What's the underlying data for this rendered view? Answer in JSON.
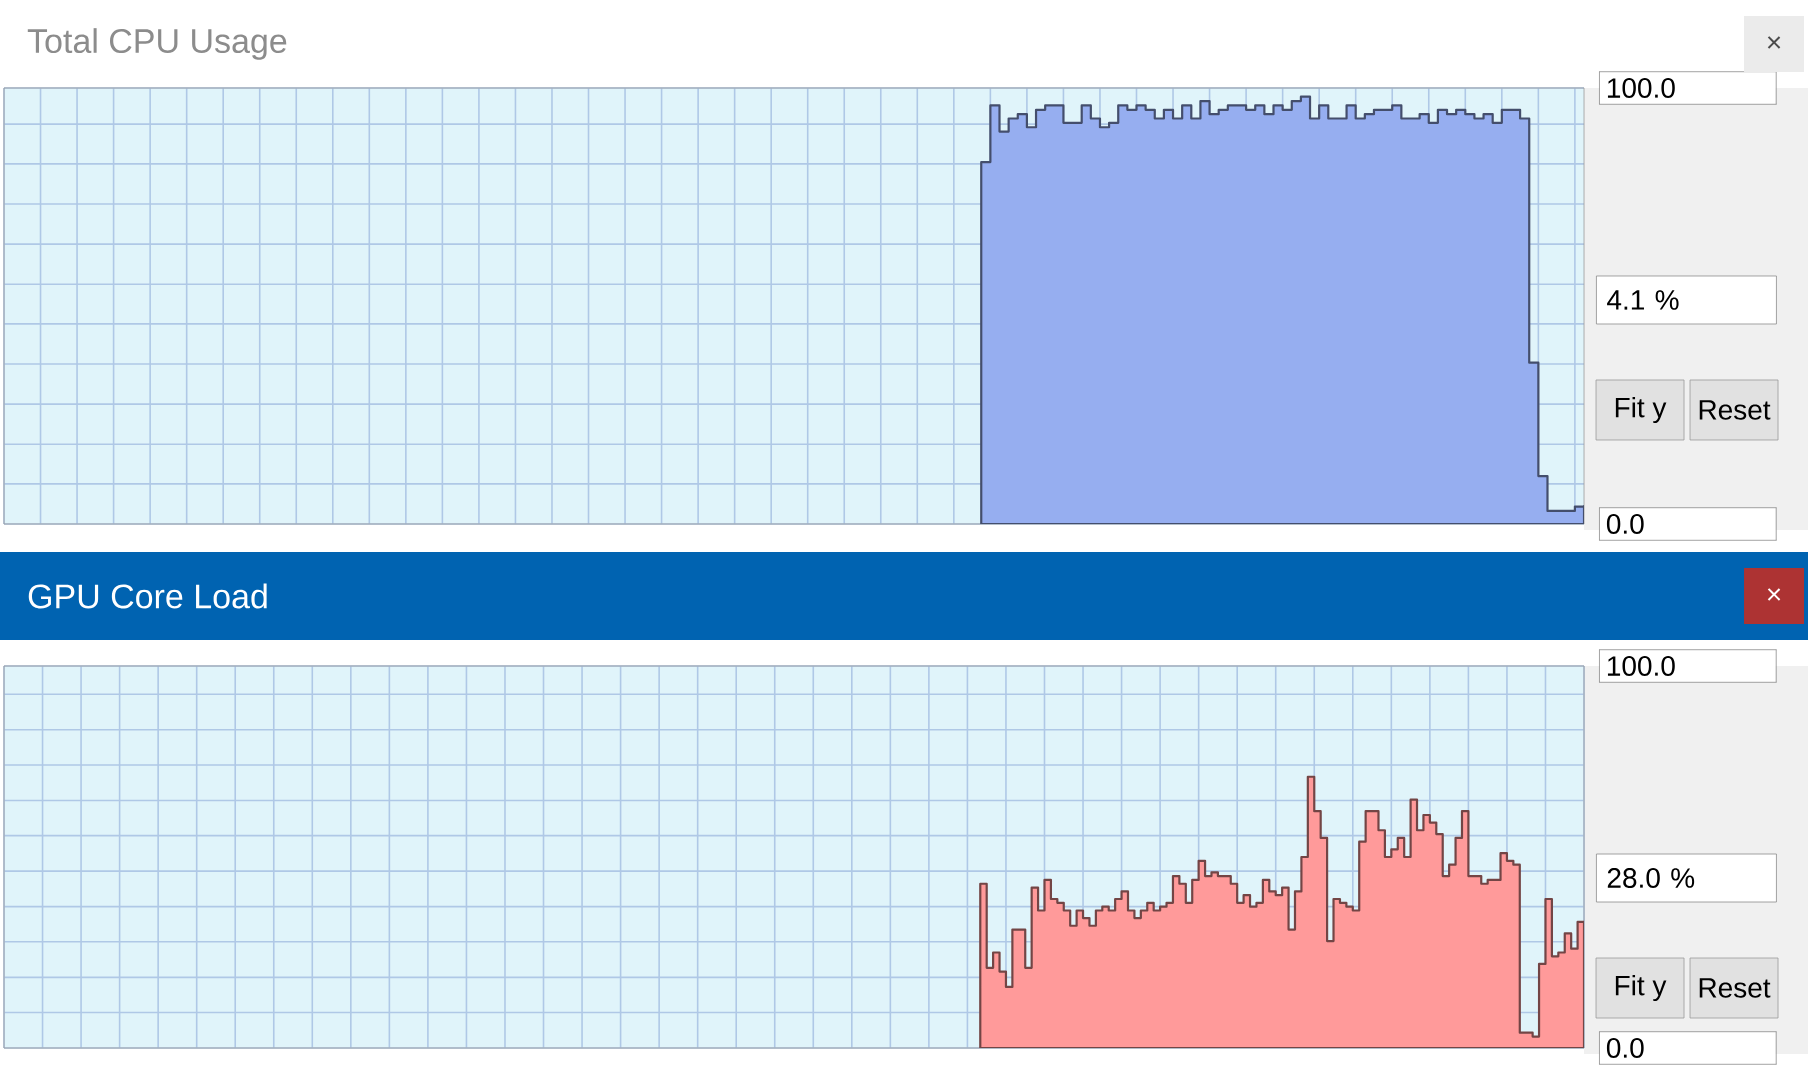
{
  "chart_data": [
    {
      "type": "area",
      "title": "Total CPU Usage",
      "color": "#96aef0",
      "grid": true,
      "tick_labels": "y",
      "ylim": [
        0,
        100
      ],
      "yticks": [
        {
          "value": 0,
          "label": "0.0"
        },
        {
          "value": 9.2,
          "label": null
        },
        {
          "value": 18.3,
          "label": null
        },
        {
          "value": 27.5,
          "label": null
        },
        {
          "value": 36.7,
          "label": null
        },
        {
          "value": 45.9,
          "label": null
        },
        {
          "value": 55,
          "label": null
        },
        {
          "value": 64.2,
          "label": null
        },
        {
          "value": 73.4,
          "label": null
        },
        {
          "value": 82.6,
          "label": null
        },
        {
          "value": 91.7,
          "label": null
        },
        {
          "value": 100,
          "label": "100.0"
        }
      ],
      "annotations": [
        "4.1 %",
        "Fit y",
        "Reset",
        "×"
      ],
      "categories": [
        null,
        null,
        null,
        null,
        null,
        null,
        null,
        null,
        null,
        null,
        null,
        null,
        null,
        null,
        null,
        null,
        null,
        null,
        null,
        null,
        null,
        null,
        null,
        null,
        null,
        null,
        null,
        null,
        null,
        null,
        null,
        null,
        null,
        null,
        null,
        null,
        null,
        null,
        null,
        null,
        null,
        null,
        null,
        null,
        null,
        null,
        null,
        null,
        null,
        null,
        null,
        null,
        null,
        null,
        null,
        null,
        null,
        null,
        null,
        null,
        null,
        null,
        null,
        null,
        null,
        null,
        null,
        null,
        null,
        null,
        null,
        null,
        null,
        null,
        null,
        null,
        null,
        null,
        null,
        null,
        null,
        null,
        null,
        null,
        null,
        null,
        null,
        null,
        null,
        null,
        null,
        null,
        null,
        null,
        null,
        null,
        null,
        null,
        null,
        null,
        null,
        null,
        null,
        null,
        null,
        null,
        null,
        null,
        null,
        null,
        null,
        null,
        null,
        null,
        null,
        null,
        null,
        null,
        null,
        null,
        null,
        null,
        null,
        null,
        null,
        null,
        null,
        null,
        null,
        null,
        null,
        null,
        null,
        null,
        null,
        null,
        null,
        null,
        null,
        null,
        null,
        null,
        null,
        null,
        null,
        null,
        null,
        null,
        null,
        null,
        null,
        null,
        null,
        null,
        null,
        null,
        null,
        null,
        null,
        null,
        null,
        null,
        null,
        null,
        null,
        null,
        null,
        null,
        null,
        null,
        null,
        null,
        null,
        null
      ],
      "values": [
        null,
        null,
        null,
        null,
        null,
        null,
        null,
        null,
        null,
        null,
        null,
        null,
        null,
        null,
        null,
        null,
        null,
        null,
        null,
        null,
        null,
        null,
        null,
        null,
        null,
        null,
        null,
        null,
        null,
        null,
        null,
        null,
        null,
        null,
        null,
        null,
        null,
        null,
        null,
        null,
        null,
        null,
        null,
        null,
        null,
        null,
        null,
        null,
        null,
        null,
        null,
        null,
        null,
        null,
        null,
        null,
        null,
        null,
        null,
        null,
        null,
        null,
        null,
        null,
        null,
        null,
        null,
        null,
        null,
        null,
        null,
        null,
        null,
        null,
        null,
        null,
        null,
        null,
        null,
        null,
        null,
        null,
        null,
        null,
        null,
        null,
        null,
        null,
        null,
        null,
        null,
        null,
        null,
        null,
        null,
        null,
        null,
        null,
        null,
        null,
        null,
        null,
        null,
        null,
        null,
        null,
        null,
        83,
        96,
        90,
        93,
        94,
        91,
        95,
        96,
        96,
        92,
        92,
        96,
        93,
        91,
        92,
        96,
        95,
        96,
        95,
        93,
        95,
        93,
        96,
        93,
        97,
        94,
        95,
        96,
        96,
        95,
        96,
        94,
        96,
        95,
        97,
        98,
        93,
        96,
        93,
        93,
        96,
        93,
        94,
        95,
        95,
        96,
        93,
        93,
        94,
        92,
        95,
        94,
        95,
        94,
        93,
        94,
        92,
        95,
        95,
        93,
        37,
        11,
        3,
        3,
        3,
        4,
        4.1
      ]
    },
    {
      "type": "area",
      "title": "GPU Core Load",
      "color": "#ff9a9a",
      "grid": true,
      "tick_labels": "y",
      "ylim": [
        0,
        100
      ],
      "yticks": [
        {
          "value": 0,
          "label": "0.0"
        },
        {
          "value": 9.3,
          "label": null
        },
        {
          "value": 18.5,
          "label": null
        },
        {
          "value": 27.8,
          "label": null
        },
        {
          "value": 37,
          "label": null
        },
        {
          "value": 46.3,
          "label": null
        },
        {
          "value": 55.6,
          "label": null
        },
        {
          "value": 64.8,
          "label": null
        },
        {
          "value": 74.1,
          "label": null
        },
        {
          "value": 83.3,
          "label": null
        },
        {
          "value": 92.6,
          "label": null
        },
        {
          "value": 100,
          "label": "100.0"
        }
      ],
      "annotations": [
        "28.0 %",
        "Fit y",
        "Reset",
        "×"
      ],
      "categories": [
        null,
        null,
        null,
        null,
        null,
        null,
        null,
        null,
        null,
        null,
        null,
        null,
        null,
        null,
        null,
        null,
        null,
        null,
        null,
        null,
        null,
        null,
        null,
        null,
        null,
        null,
        null,
        null,
        null,
        null,
        null,
        null,
        null,
        null,
        null,
        null,
        null,
        null,
        null,
        null,
        null,
        null,
        null,
        null,
        null,
        null,
        null,
        null,
        null,
        null,
        null,
        null,
        null,
        null,
        null,
        null,
        null,
        null,
        null,
        null,
        null,
        null,
        null,
        null,
        null,
        null,
        null,
        null,
        null,
        null,
        null,
        null,
        null,
        null,
        null,
        null,
        null,
        null,
        null,
        null,
        null,
        null,
        null,
        null,
        null,
        null,
        null,
        null,
        null,
        null,
        null,
        null,
        null,
        null,
        null,
        null,
        null,
        null,
        null,
        null,
        null,
        null,
        null,
        null,
        null,
        null,
        null,
        null,
        null,
        null,
        null,
        null,
        null,
        null,
        null,
        null,
        null,
        null,
        null,
        null,
        null,
        null,
        null,
        null,
        null,
        null,
        null,
        null,
        null,
        null,
        null,
        null,
        null,
        null,
        null,
        null,
        null,
        null,
        null,
        null,
        null,
        null,
        null,
        null,
        null,
        null,
        null,
        null,
        null,
        null,
        null,
        null,
        null,
        null,
        null,
        null,
        null,
        null,
        null,
        null,
        null,
        null,
        null,
        null,
        null,
        null,
        null,
        null,
        null,
        null,
        null,
        null,
        null,
        null,
        null,
        null,
        null,
        null,
        null,
        null,
        null,
        null,
        null,
        null,
        null,
        null,
        null,
        null,
        null,
        null,
        null,
        null,
        null,
        null,
        null,
        null,
        null,
        null,
        null,
        null,
        null,
        null,
        null,
        null,
        null,
        null,
        null,
        null,
        null,
        null,
        null,
        null,
        null,
        null,
        null,
        null,
        null,
        null,
        null,
        null,
        null,
        null,
        null,
        null,
        null,
        null,
        null,
        null,
        null,
        null,
        null,
        null,
        null,
        null,
        null,
        null,
        null,
        null,
        null,
        null,
        null,
        null,
        null,
        null,
        null,
        null,
        null
      ],
      "values": [
        null,
        null,
        null,
        null,
        null,
        null,
        null,
        null,
        null,
        null,
        null,
        null,
        null,
        null,
        null,
        null,
        null,
        null,
        null,
        null,
        null,
        null,
        null,
        null,
        null,
        null,
        null,
        null,
        null,
        null,
        null,
        null,
        null,
        null,
        null,
        null,
        null,
        null,
        null,
        null,
        null,
        null,
        null,
        null,
        null,
        null,
        null,
        null,
        null,
        null,
        null,
        null,
        null,
        null,
        null,
        null,
        null,
        null,
        null,
        null,
        null,
        null,
        null,
        null,
        null,
        null,
        null,
        null,
        null,
        null,
        null,
        null,
        null,
        null,
        null,
        null,
        null,
        null,
        null,
        null,
        null,
        null,
        null,
        null,
        null,
        null,
        null,
        null,
        null,
        null,
        null,
        null,
        null,
        null,
        null,
        null,
        null,
        null,
        null,
        null,
        null,
        null,
        null,
        null,
        null,
        null,
        null,
        null,
        null,
        null,
        null,
        null,
        null,
        null,
        null,
        null,
        null,
        null,
        null,
        null,
        null,
        null,
        null,
        null,
        null,
        null,
        null,
        null,
        null,
        null,
        null,
        null,
        null,
        null,
        null,
        null,
        null,
        null,
        null,
        null,
        null,
        null,
        null,
        null,
        null,
        null,
        null,
        null,
        null,
        null,
        null,
        null,
        43,
        21,
        25,
        20,
        16,
        31,
        31,
        21,
        42,
        36,
        44,
        39,
        38,
        36,
        32,
        36,
        34,
        32,
        36,
        37,
        36,
        39,
        41,
        36,
        34,
        36,
        38,
        36,
        37,
        38,
        45,
        43,
        38,
        44,
        49,
        45,
        46,
        45,
        45,
        43,
        38,
        40,
        37,
        38,
        44,
        41,
        40,
        42,
        31,
        41,
        50,
        71,
        62,
        55,
        28,
        39,
        38,
        37,
        36,
        54,
        62,
        62,
        57,
        50,
        52,
        55,
        50,
        65,
        57,
        61,
        59,
        56,
        45,
        48,
        55,
        62,
        45,
        45,
        43,
        44,
        44,
        51,
        49,
        48,
        4,
        4,
        3,
        22,
        39,
        24,
        25,
        30,
        26,
        33,
        28
      ]
    }
  ]
}
